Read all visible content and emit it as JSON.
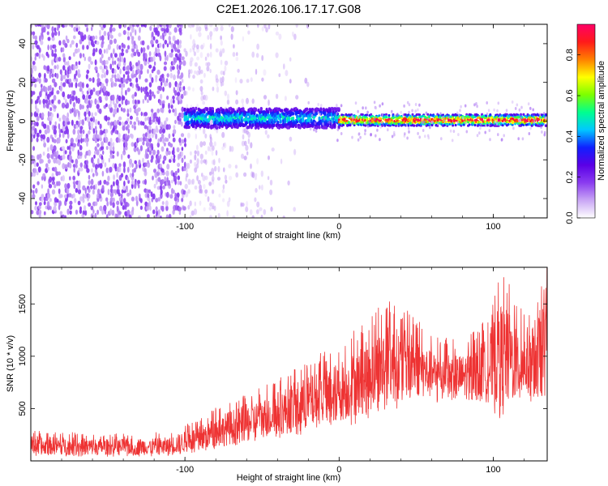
{
  "figure": {
    "title": "C2E1.2026.106.17.17.G08"
  },
  "chart_data": [
    {
      "type": "heatmap",
      "xlabel": "Height of straight line (km)",
      "ylabel": "Frequency (Hz)",
      "xlim": [
        -200,
        135
      ],
      "ylim": [
        -50,
        50
      ],
      "x_ticks": [
        -100,
        0,
        100
      ],
      "y_ticks": [
        -40,
        -20,
        0,
        20,
        40
      ],
      "colorbar": {
        "label": "Normalized spectral amplitude",
        "range": [
          0.0,
          0.95
        ],
        "ticks": [
          0.0,
          0.2,
          0.4,
          0.6,
          0.8
        ],
        "colormap": [
          "#ffffff",
          "#c9a6f5",
          "#8a3cf0",
          "#5a00e6",
          "#1020ff",
          "#00c8ff",
          "#00ff90",
          "#7cff00",
          "#ffff00",
          "#ff8000",
          "#ff1a1a",
          "#ff0066"
        ]
      },
      "regions": [
        {
          "x_range": [
            -200,
            -100
          ],
          "description": "broad noise",
          "amplitude": [
            0.05,
            0.2
          ]
        },
        {
          "x_range": [
            -100,
            0
          ],
          "center_hz": 1.5,
          "half_width_hz": 5,
          "amplitude": [
            0.2,
            0.55
          ]
        },
        {
          "x_range": [
            0,
            135
          ],
          "center_hz": 0.5,
          "half_width_hz": 3,
          "amplitude": [
            0.5,
            0.95
          ]
        }
      ],
      "grid": false
    },
    {
      "type": "line",
      "xlabel": "Height of straight line (km)",
      "ylabel": "SNR (10 * v/v)",
      "xlim": [
        -200,
        135
      ],
      "ylim": [
        0,
        1850
      ],
      "x_ticks": [
        -100,
        0,
        100
      ],
      "y_ticks": [
        500,
        1000,
        1500
      ],
      "series": [
        {
          "color": "#ee3333",
          "envelope": {
            "x": [
              -200,
              -150,
              -110,
              -90,
              -70,
              -50,
              -30,
              -10,
              10,
              30,
              45,
              60,
              80,
              95,
              105,
              120,
              135
            ],
            "low": [
              40,
              40,
              40,
              80,
              120,
              180,
              220,
              280,
              350,
              450,
              550,
              550,
              550,
              500,
              400,
              550,
              500
            ],
            "high": [
              300,
              260,
              280,
              420,
              600,
              720,
              900,
              1050,
              1250,
              1550,
              1450,
              1200,
              1150,
              1350,
              1850,
              1450,
              1850
            ]
          }
        }
      ],
      "grid": false
    }
  ]
}
